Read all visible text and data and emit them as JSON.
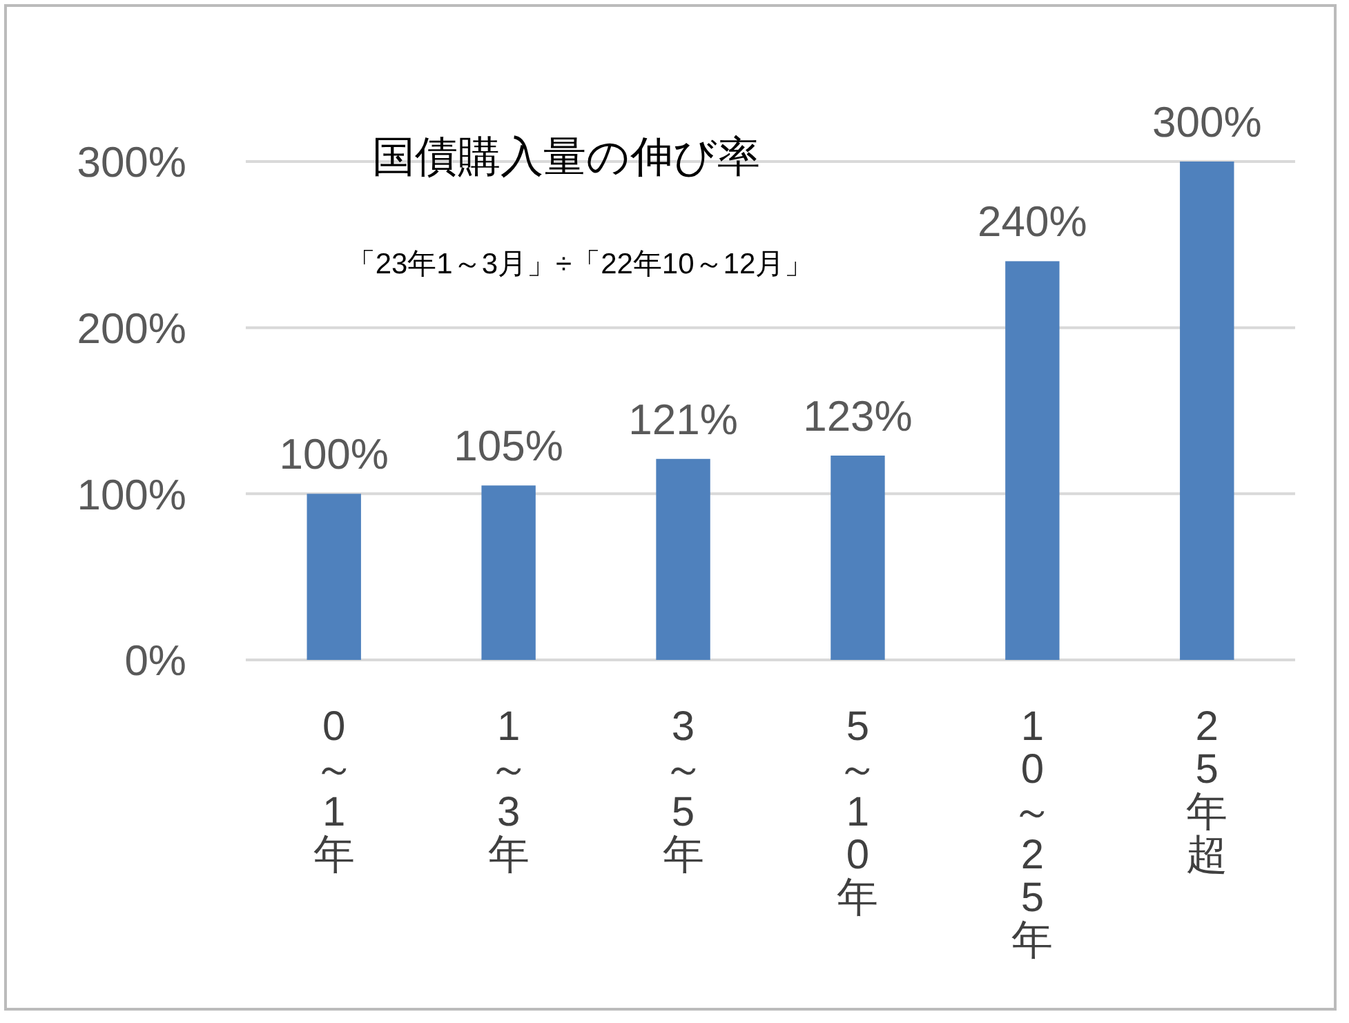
{
  "chart_data": {
    "type": "bar",
    "title": "国債購入量の伸び率",
    "subtitle": "「23年1～3月」÷「22年10～12月」",
    "categories": [
      "0～1年",
      "1～3年",
      "3～5年",
      "5～10年",
      "10～25年",
      "25年超"
    ],
    "values": [
      100,
      105,
      121,
      123,
      240,
      300
    ],
    "color": "#4f81bd",
    "ylim": [
      0,
      300
    ],
    "yticks": [
      {
        "value": 0,
        "label": "0%"
      },
      {
        "value": 100,
        "label": "100%"
      },
      {
        "value": 200,
        "label": "200%"
      },
      {
        "value": 300,
        "label": "300%"
      }
    ],
    "grid": "y",
    "data_labels": true,
    "value_labels": [
      "100%",
      "105%",
      "121%",
      "123%",
      "240%",
      "300%"
    ]
  }
}
